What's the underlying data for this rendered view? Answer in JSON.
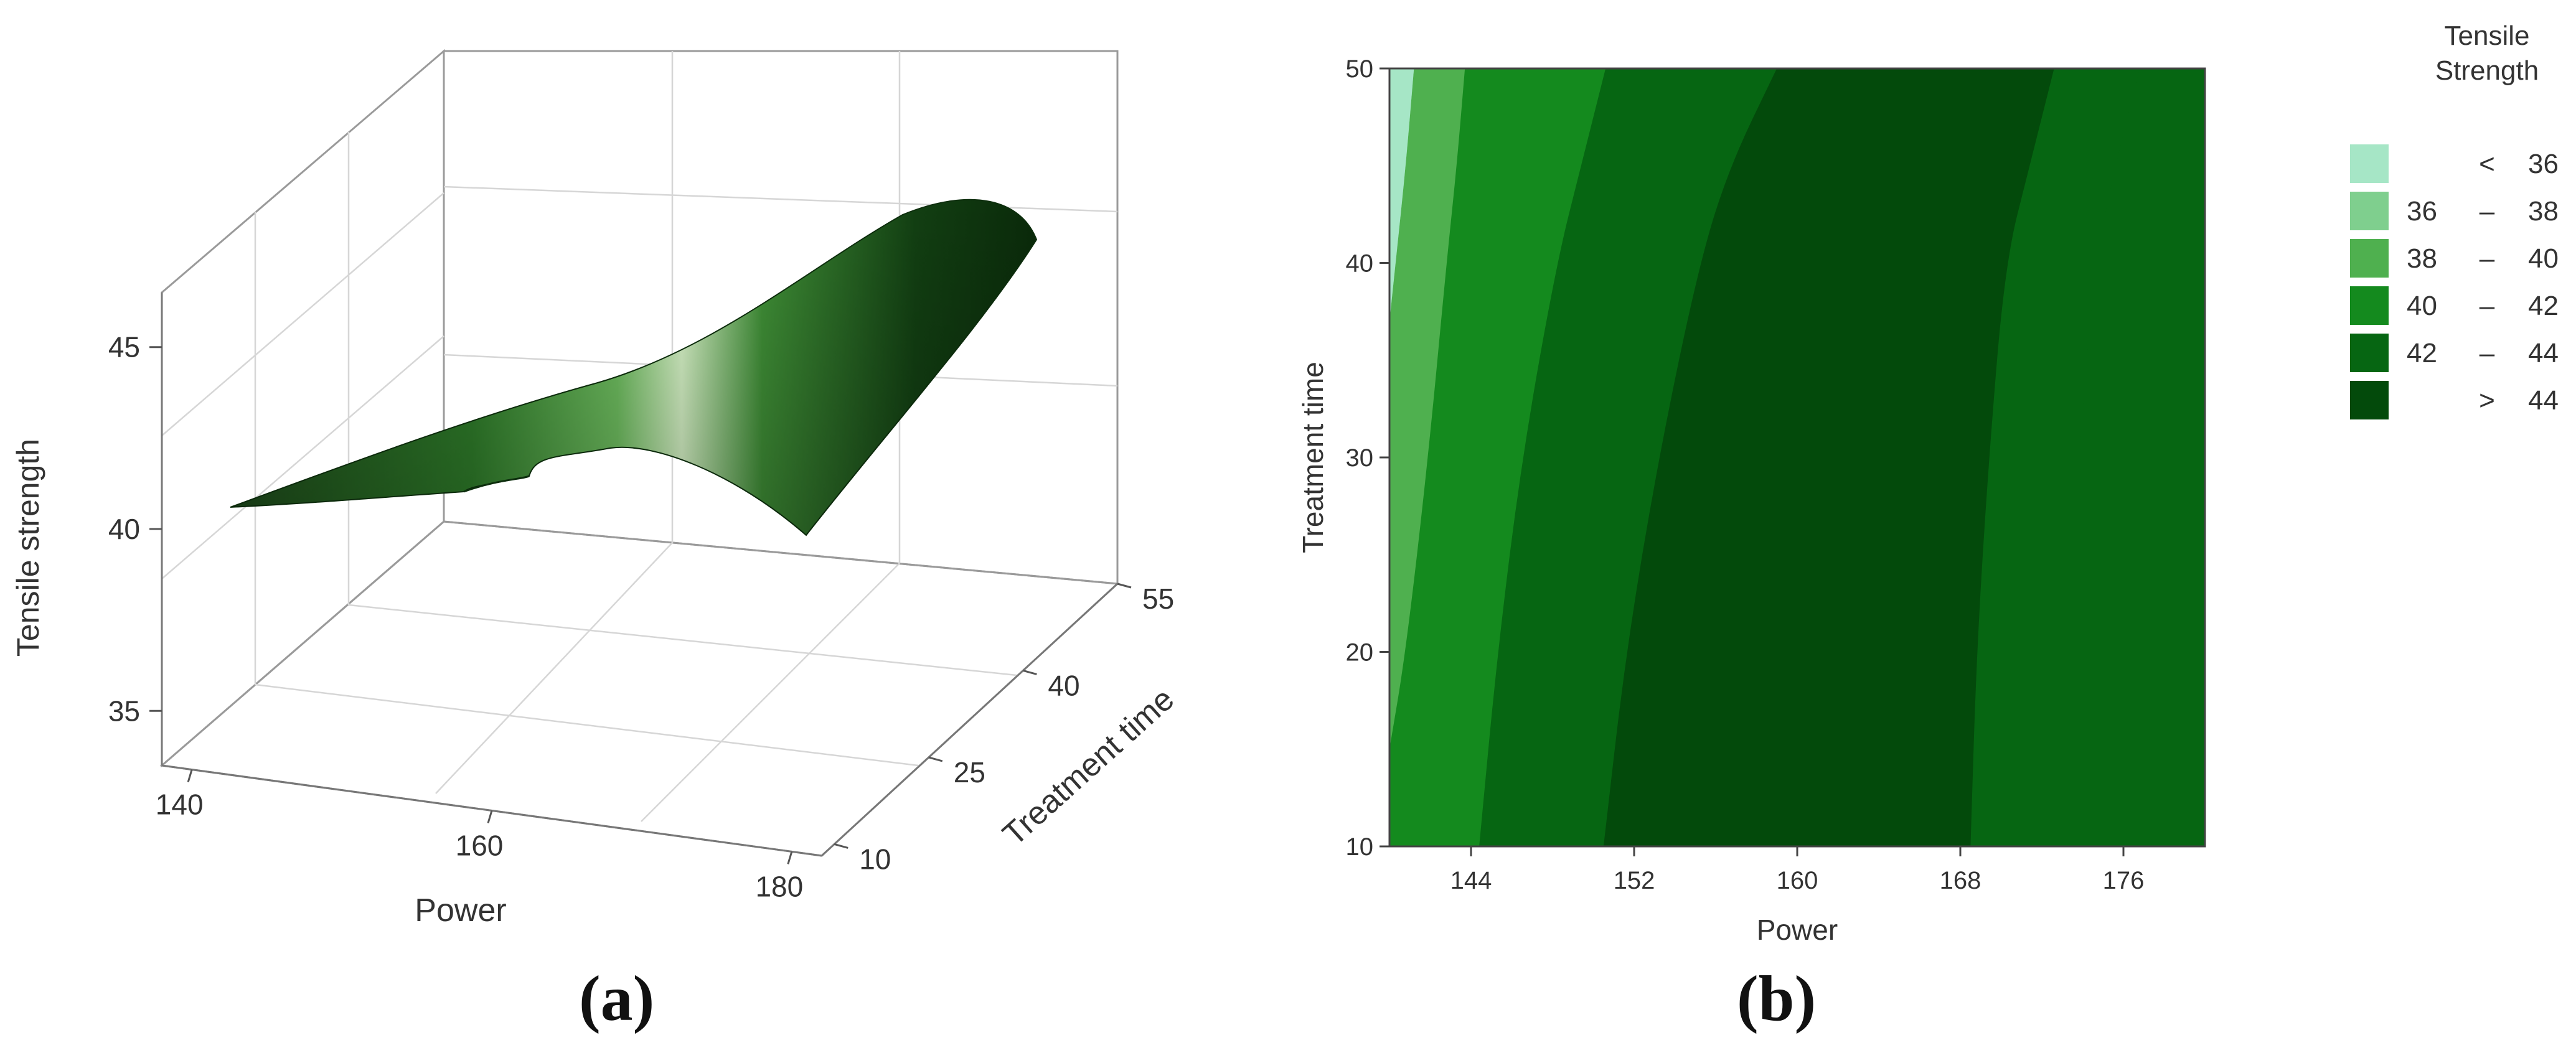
{
  "captions": {
    "a": "(a)",
    "b": "(b)"
  },
  "chart_data": [
    {
      "type": "surface3d",
      "panel": "a",
      "xlabel": "Power",
      "ylabel": "Treatment time",
      "zlabel": "Tensile strength",
      "x_ticks": [
        140,
        160,
        180
      ],
      "y_ticks": [
        10,
        25,
        40,
        55
      ],
      "z_ticks": [
        35,
        40,
        45
      ],
      "x_range": [
        138,
        182
      ],
      "y_range": [
        8,
        55
      ],
      "z_range": [
        33.5,
        46.5
      ],
      "surface_color": "#2f7d2a",
      "highlight_color": "#d8f5c8",
      "grid": true
    },
    {
      "type": "contour",
      "panel": "b",
      "xlabel": "Power",
      "ylabel": "Treatment time",
      "x_ticks": [
        144,
        152,
        160,
        168,
        176
      ],
      "y_ticks": [
        10,
        20,
        30,
        40,
        50
      ],
      "xlim": [
        140,
        180
      ],
      "ylim": [
        10,
        50
      ],
      "legend_title": [
        "Tensile",
        "Strength"
      ],
      "legend_position": "right",
      "levels": [
        {
          "label": [
            "<",
            "36"
          ],
          "color": "#a6e6c6"
        },
        {
          "label": [
            "36",
            "–",
            "38"
          ],
          "color": "#7fcf8e"
        },
        {
          "label": [
            "38",
            "–",
            "40"
          ],
          "color": "#4fb04f"
        },
        {
          "label": [
            "40",
            "–",
            "42"
          ],
          "color": "#148a1e"
        },
        {
          "label": [
            "42",
            "–",
            "44"
          ],
          "color": "#066612"
        },
        {
          "label": [
            ">",
            "44"
          ],
          "color": "#034a0b"
        }
      ],
      "boundaries": [
        {
          "level": 36,
          "points": [
            [
              141.2,
              50
            ],
            [
              140.8,
              45
            ],
            [
              140.3,
              40
            ],
            [
              140,
              37
            ]
          ]
        },
        {
          "level": 38,
          "points": [
            [
              143.7,
              50
            ],
            [
              143.3,
              45
            ],
            [
              142.8,
              40
            ],
            [
              141.9,
              30
            ],
            [
              140.8,
              20
            ],
            [
              140,
              15
            ]
          ]
        },
        {
          "level": 40,
          "points": [
            [
              150.6,
              50
            ],
            [
              149.4,
              45
            ],
            [
              148.2,
              40
            ],
            [
              146.5,
              30
            ],
            [
              145.3,
              20
            ],
            [
              144.4,
              10
            ]
          ]
        },
        {
          "level": 42,
          "points": [
            [
              159.0,
              50
            ],
            [
              156.7,
              45
            ],
            [
              155.2,
              40
            ],
            [
              153.2,
              30
            ],
            [
              151.6,
              20
            ],
            [
              150.5,
              10
            ]
          ]
        },
        {
          "level": 44,
          "points": [
            [
              172.6,
              50
            ],
            [
              171.4,
              45
            ],
            [
              170.2,
              40
            ],
            [
              169.4,
              30
            ],
            [
              168.8,
              20
            ],
            [
              168.5,
              10
            ]
          ]
        }
      ]
    }
  ]
}
